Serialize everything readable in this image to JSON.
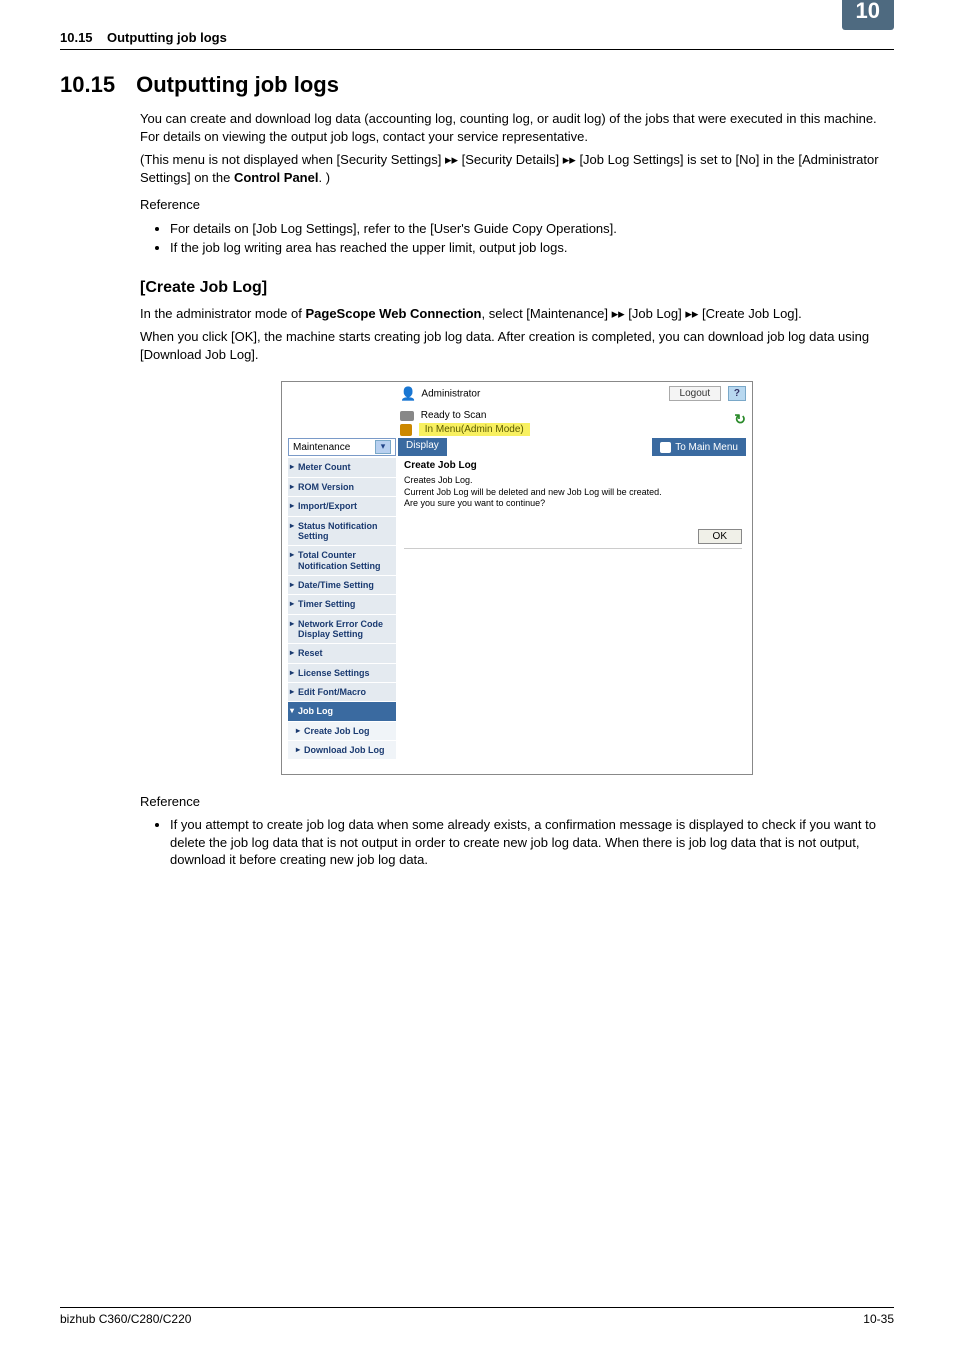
{
  "runhead": {
    "section_no": "10.15",
    "section_title": "Outputting job logs"
  },
  "chapter_tab": "10",
  "h1": {
    "num": "10.15",
    "title": "Outputting job logs"
  },
  "p_intro": "You can create and download log data (accounting log, counting log, or audit log) of the jobs that were executed in this machine. For details on viewing the output job logs, contact your service representative.",
  "p_note_a": "(This menu is not displayed when [Security Settings] ",
  "p_note_b": " [Security Details] ",
  "p_note_c": " [Job Log Settings] is set to [No] in the [Administrator Settings] on the ",
  "p_note_bold": "Control Panel",
  "p_note_d": ". )",
  "reference_label": "Reference",
  "ref1_items": [
    "For details on [Job Log Settings], refer to the [User's Guide Copy Operations].",
    "If the job log writing area has reached the upper limit, output job logs."
  ],
  "h2": "[Create Job Log]",
  "p_admin_a": "In the administrator mode of ",
  "p_admin_bold": "PageScope Web Connection",
  "p_admin_b": ", select [Maintenance] ",
  "p_admin_c": " [Job Log] ",
  "p_admin_d": " [Create Job Log].",
  "p_ok": "When you click [OK], the machine starts creating job log data. After creation is completed, you can download job log data using [Download Job Log].",
  "ref2_item": "If you attempt to create job log data when some already exists, a confirmation message is displayed to check if you want to delete the job log data that is not output in order to create new job log data. When there is job log data that is not output, download it before creating new job log data.",
  "footer": {
    "left": "bizhub C360/C280/C220",
    "right": "10-35"
  },
  "arrow_glyph": "▸▸",
  "screenshot": {
    "administrator": "Administrator",
    "logout": "Logout",
    "help": "?",
    "ready": "Ready to Scan",
    "in_menu": "In Menu(Admin Mode)",
    "dropdown_value": "Maintenance",
    "display": "Display",
    "to_main_menu": "To Main Menu",
    "sidebar": [
      "Meter Count",
      "ROM Version",
      "Import/Export",
      "Status Notification Setting",
      "Total Counter Notification Setting",
      "Date/Time Setting",
      "Timer Setting",
      "Network Error Code Display Setting",
      "Reset",
      "License Settings",
      "Edit Font/Macro"
    ],
    "sidebar_expanded": "Job Log",
    "sidebar_sub": [
      "Create Job Log",
      "Download Job Log"
    ],
    "pane_title": "Create Job Log",
    "pane_line1": "Creates Job Log.",
    "pane_line2": "Current Job Log will be deleted and new Job Log will be created.",
    "pane_line3": "Are you sure you want to continue?",
    "ok": "OK",
    "colors": {
      "tab_bg": "#4e6a80",
      "bar_blue": "#3a6aa0",
      "side_bg": "#e4eaf0",
      "side_text": "#1a3a70",
      "inmenu_bg": "#f8f060"
    }
  }
}
